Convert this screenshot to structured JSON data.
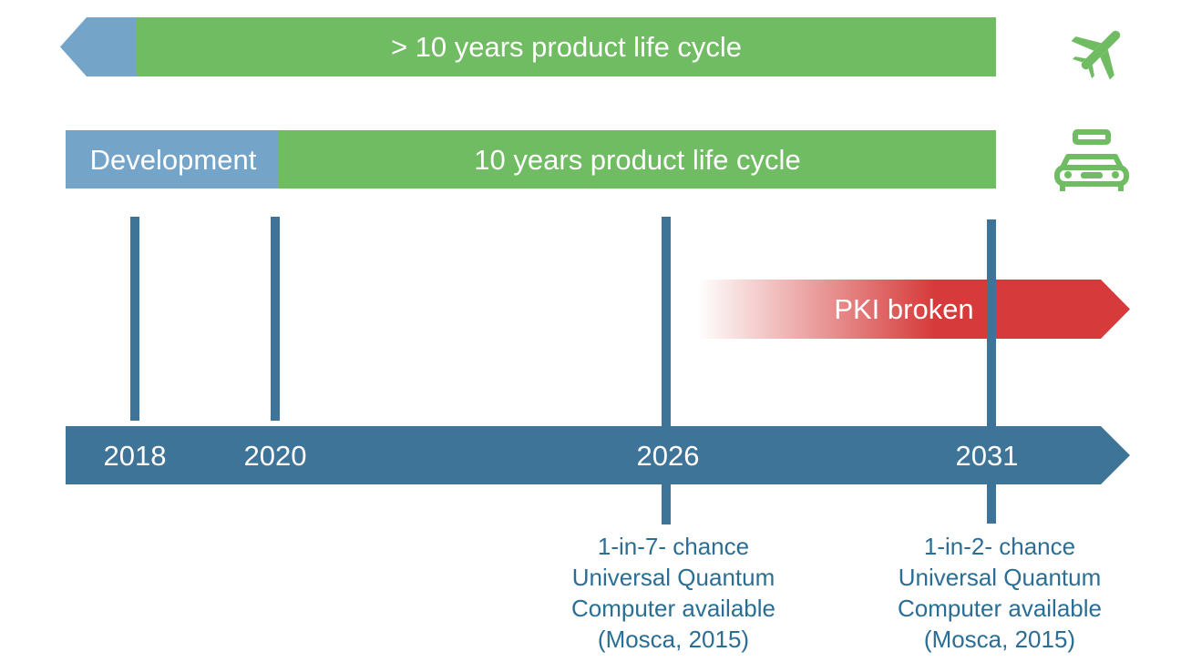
{
  "colors": {
    "green": "#70bc63",
    "light_blue": "#74a5c9",
    "dark_blue": "#3f7499",
    "red": "#d63a3a",
    "note_text": "#2a6e95"
  },
  "bars": {
    "plane_bar": {
      "label": "> 10 years product life cycle",
      "icon": "airplane-icon"
    },
    "car_bar": {
      "development_label": "Development",
      "life_label": "10 years product life cycle",
      "icon": "taxi-car-icon"
    },
    "pki_arrow": {
      "label": "PKI broken"
    }
  },
  "timeline": {
    "years": [
      "2018",
      "2020",
      "2026",
      "2031"
    ]
  },
  "notes": [
    {
      "lines": [
        "1-in-7- chance",
        "Universal Quantum",
        "Computer available",
        "(Mosca, 2015)"
      ]
    },
    {
      "lines": [
        "1-in-2- chance",
        "Universal Quantum",
        "Computer available",
        "(Mosca, 2015)"
      ]
    }
  ]
}
